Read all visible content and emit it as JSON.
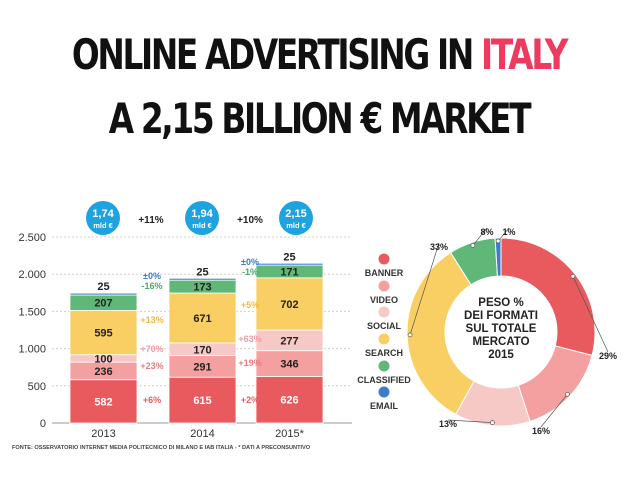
{
  "title": {
    "line1_prefix": "ONLINE ADVERTISING IN ",
    "line1_highlight": "ITALY",
    "line2": "A 2,15 BILLION € MARKET"
  },
  "colors": {
    "banner": "#e85a5e",
    "video": "#f5a0a0",
    "social": "#f7c9c6",
    "search": "#f9cf63",
    "classified": "#5fb878",
    "email": "#3d7cc9",
    "bubble": "#1fa3e0",
    "accent": "#ee3a5e"
  },
  "chart_data": [
    {
      "type": "bar",
      "categories": [
        "2013",
        "2014",
        "2015*"
      ],
      "ylim": [
        0,
        2500
      ],
      "yticks": [
        0,
        500,
        1000,
        1500,
        2000,
        2500
      ],
      "ytick_labels": [
        "0",
        "500",
        "1.000",
        "1.500",
        "2.000",
        "2.500"
      ],
      "series": [
        {
          "name": "BANNER",
          "values": [
            582,
            615,
            626
          ]
        },
        {
          "name": "VIDEO",
          "values": [
            236,
            291,
            346
          ]
        },
        {
          "name": "SOCIAL",
          "values": [
            100,
            170,
            277
          ]
        },
        {
          "name": "SEARCH",
          "values": [
            595,
            671,
            702
          ]
        },
        {
          "name": "CLASSIFIED",
          "values": [
            207,
            173,
            171
          ]
        },
        {
          "name": "EMAIL",
          "values": [
            25,
            25,
            25
          ]
        }
      ],
      "totals": [
        {
          "value": "1,74",
          "unit": "mld €"
        },
        {
          "value": "1,94",
          "unit": "mld €"
        },
        {
          "value": "2,15",
          "unit": "mld €"
        }
      ],
      "total_growth": [
        "+11%",
        "+10%"
      ],
      "changes": [
        {
          "banner": "+6%",
          "video": "+23%",
          "social": "+70%",
          "search": "+13%",
          "classified": "-16%",
          "email": "±0%"
        },
        {
          "banner": "+2%",
          "video": "+19%",
          "social": "+63%",
          "search": "+5%",
          "classified": "-1%",
          "email": "±0%"
        }
      ],
      "source": "FONTE: OSSERVATORIO INTERNET MEDIA POLITECNICO DI MILANO E IAB ITALIA - * DATI A PRECONSUNTIVO"
    },
    {
      "type": "pie",
      "donut": true,
      "center_label": [
        "PESO %",
        "DEI FORMATI",
        "SUL TOTALE",
        "MERCATO",
        "2015"
      ],
      "labels": [
        "BANNER",
        "VIDEO",
        "SOCIAL",
        "SEARCH",
        "CLASSIFIED",
        "EMAIL"
      ],
      "values": [
        29,
        16,
        13,
        33,
        8,
        1
      ],
      "value_labels": [
        "29%",
        "16%",
        "13%",
        "33%",
        "8%",
        "1%"
      ]
    }
  ]
}
